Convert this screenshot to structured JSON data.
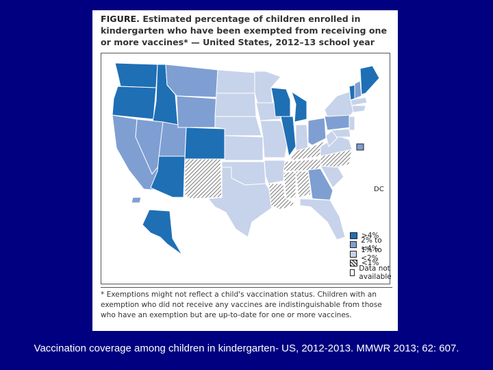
{
  "figure": {
    "label": "FIGURE.",
    "title": "Estimated percentage of children enrolled in kindergarten who have been exempted from receiving one or more vaccines* — United States, 2012–13 school year"
  },
  "map": {
    "dc_label": "DC",
    "colors": {
      "gt4": "#1f6fb5",
      "p2to4": "#7f9fd3",
      "p1to2": "#c7d3ea",
      "lt1": "hatched",
      "na": "#ffffff"
    },
    "legend": [
      {
        "key": "gt4",
        "label": ">4%"
      },
      {
        "key": "p2to4",
        "label": "2% to <4%"
      },
      {
        "key": "p1to2",
        "label": "1% to <2%"
      },
      {
        "key": "lt1",
        "label": "<1%"
      },
      {
        "key": "na",
        "label": "Data not available"
      }
    ]
  },
  "footnote": "* Exemptions might not reflect a child's vaccination status. Children with an exemption who did not receive any vaccines are indistinguishable from those who have an exemption but are up-to-date for one or more vaccines.",
  "caption": "Vaccination coverage among children in kindergarten- US, 2012-2013. MMWR 2013; 62: 607."
}
